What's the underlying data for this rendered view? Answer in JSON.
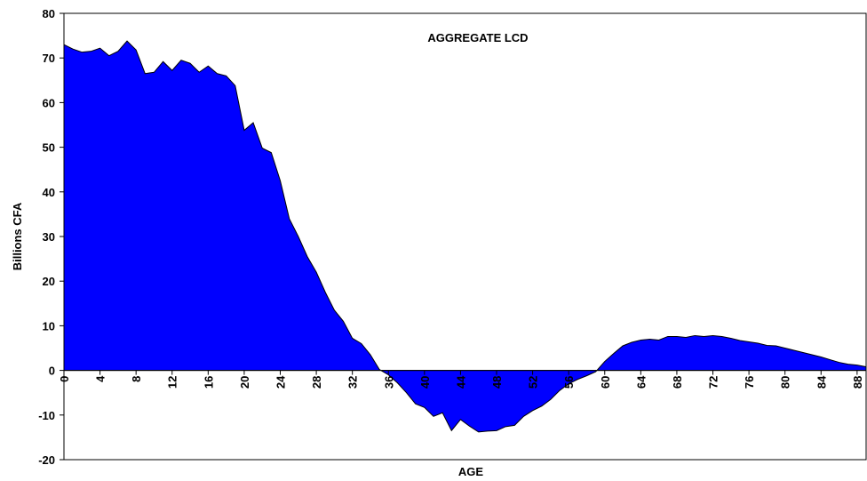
{
  "chart_data": {
    "type": "area",
    "title": "AGGREGATE LCD",
    "x_label": "AGE",
    "y_label": "Billions CFA",
    "color": "#0000ff",
    "x": [
      0,
      1,
      2,
      3,
      4,
      5,
      6,
      7,
      8,
      9,
      10,
      11,
      12,
      13,
      14,
      15,
      16,
      17,
      18,
      19,
      20,
      21,
      22,
      23,
      24,
      25,
      26,
      27,
      28,
      29,
      30,
      31,
      32,
      33,
      34,
      35,
      36,
      37,
      38,
      39,
      40,
      41,
      42,
      43,
      44,
      45,
      46,
      47,
      48,
      49,
      50,
      51,
      52,
      53,
      54,
      55,
      56,
      57,
      58,
      59,
      60,
      61,
      62,
      63,
      64,
      65,
      66,
      67,
      68,
      69,
      70,
      71,
      72,
      73,
      74,
      75,
      76,
      77,
      78,
      79,
      80,
      81,
      82,
      83,
      84,
      85,
      86,
      87,
      88,
      89
    ],
    "values": [
      73,
      72,
      71.3,
      71.5,
      72.2,
      70.5,
      71.5,
      73.8,
      71.8,
      66.5,
      66.8,
      69.2,
      67.2,
      69.5,
      68.8,
      66.8,
      68.2,
      66.5,
      66,
      63.8,
      53.8,
      55.5,
      49.8,
      48.8,
      42.5,
      34,
      30,
      25.5,
      22,
      17.5,
      13.5,
      11,
      7.2,
      6,
      3.5,
      0.2,
      -1,
      -2.8,
      -5,
      -7.5,
      -8.3,
      -10.3,
      -9.5,
      -13.5,
      -11,
      -12.5,
      -13.8,
      -13.6,
      -13.5,
      -12.6,
      -12.3,
      -10.3,
      -9,
      -8,
      -6.5,
      -4.5,
      -3,
      -2,
      -1.2,
      -0.3,
      2,
      3.8,
      5.5,
      6.3,
      6.8,
      7,
      6.8,
      7.6,
      7.6,
      7.4,
      7.8,
      7.6,
      7.8,
      7.6,
      7.2,
      6.7,
      6.4,
      6.1,
      5.6,
      5.5,
      5,
      4.5,
      4,
      3.5,
      3,
      2.4,
      1.8,
      1.4,
      1.2,
      0.8
    ],
    "xlim": [
      0,
      89
    ],
    "ylim": [
      -20,
      80
    ],
    "xticks": [
      0,
      4,
      8,
      12,
      16,
      20,
      24,
      28,
      32,
      36,
      40,
      44,
      48,
      52,
      56,
      60,
      64,
      68,
      72,
      76,
      80,
      84,
      88
    ],
    "yticks": [
      -20,
      -10,
      0,
      10,
      20,
      30,
      40,
      50,
      60,
      70,
      80
    ]
  }
}
